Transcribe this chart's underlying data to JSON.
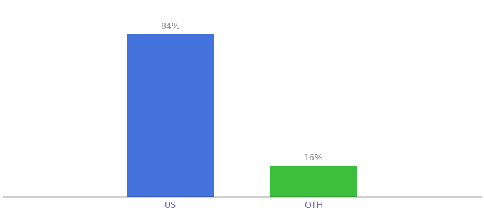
{
  "categories": [
    "US",
    "OTH"
  ],
  "values": [
    84,
    16
  ],
  "bar_colors": [
    "#4472dd",
    "#3dbf3d"
  ],
  "labels": [
    "84%",
    "16%"
  ],
  "background_color": "#ffffff",
  "ylim": [
    0,
    100
  ],
  "bar_width": 0.18,
  "figsize": [
    6.8,
    3.0
  ],
  "dpi": 100,
  "tick_color": "#6666cc",
  "label_color": "#888888"
}
